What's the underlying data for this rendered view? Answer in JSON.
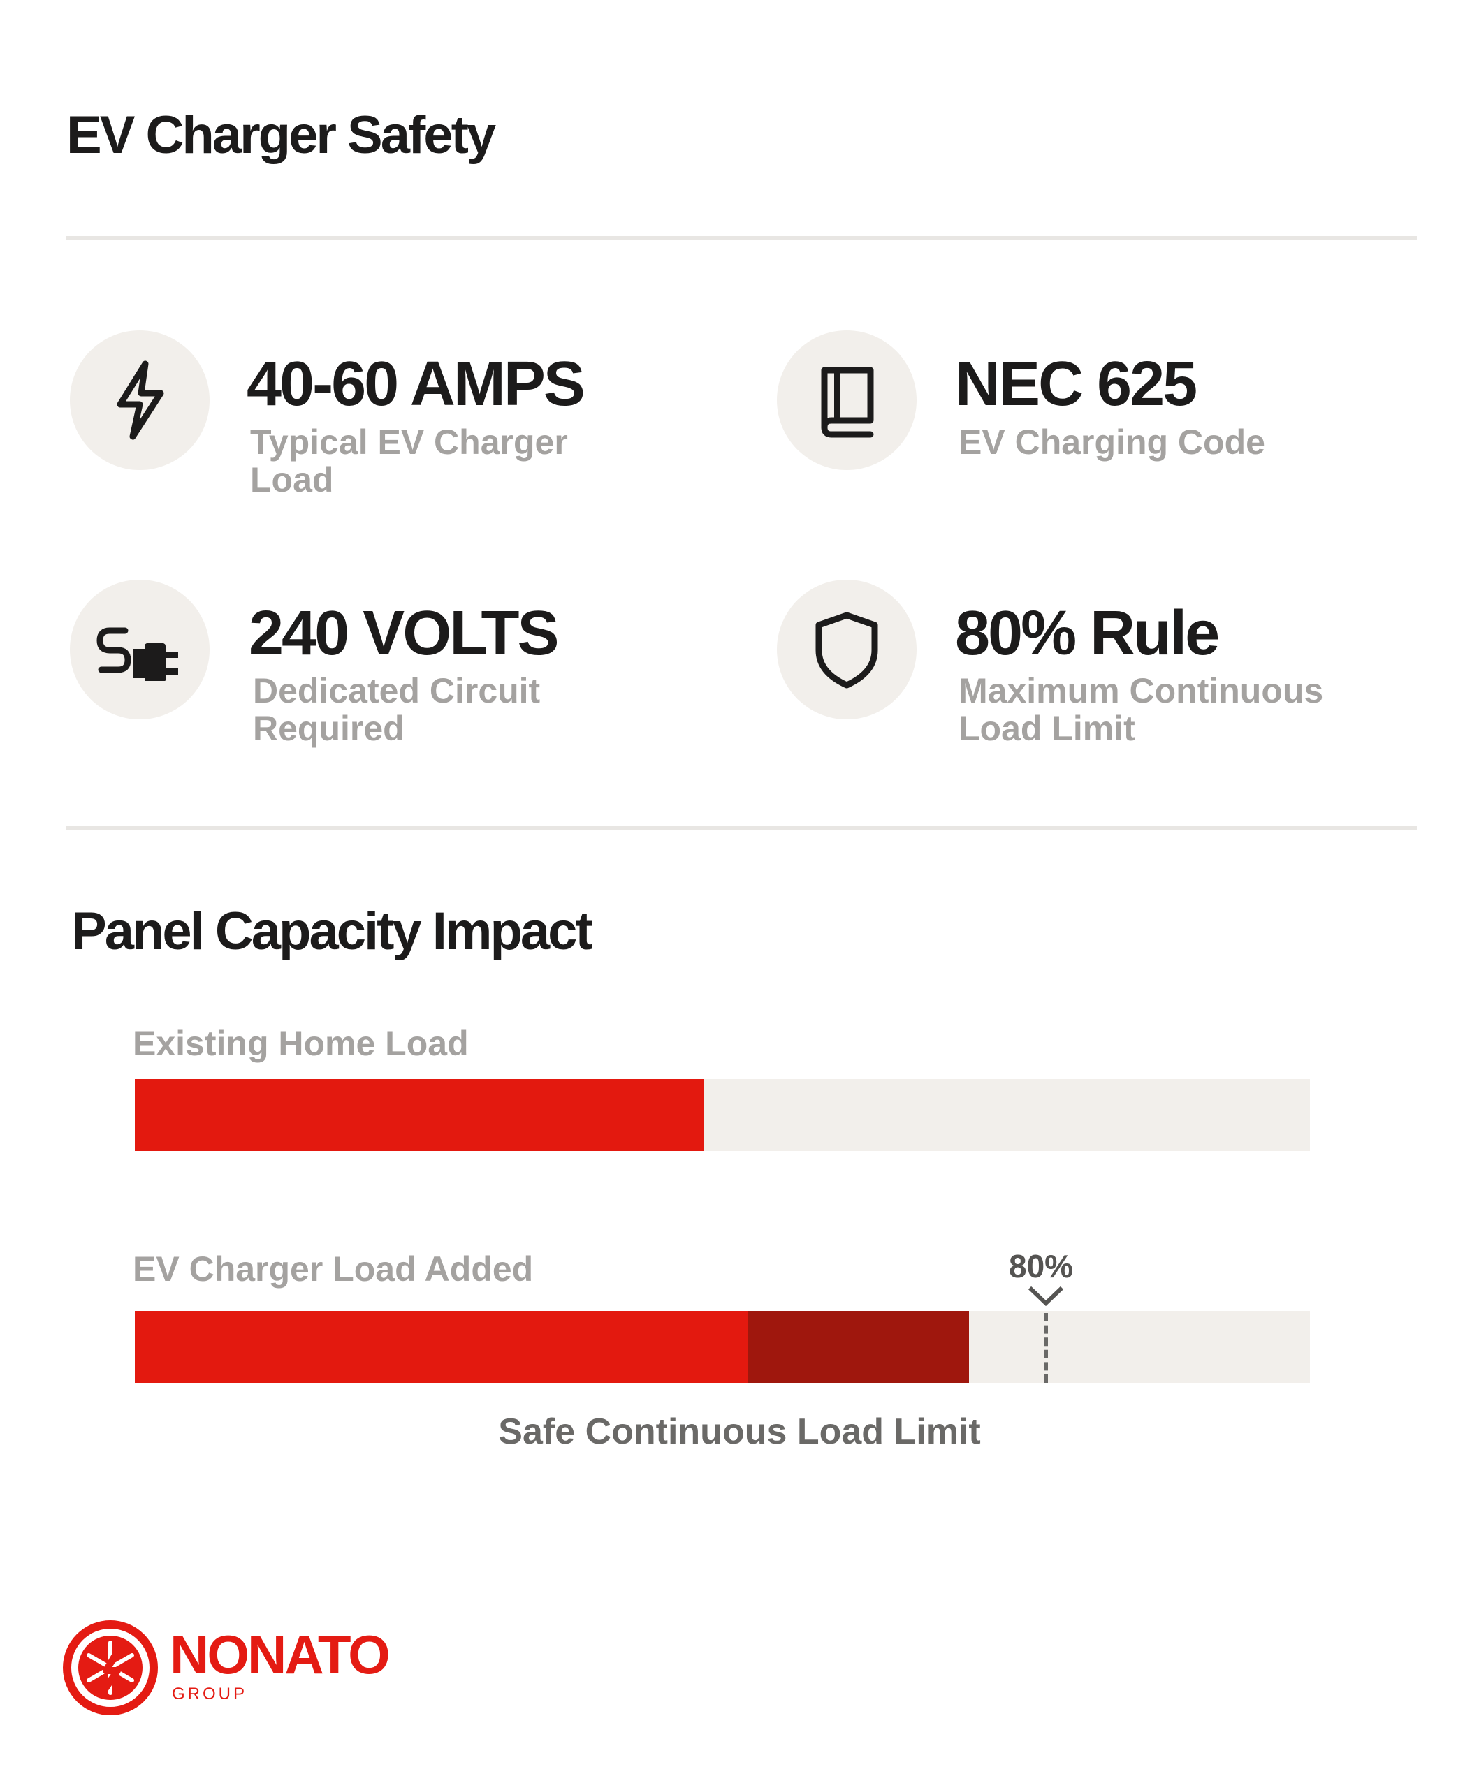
{
  "header": {
    "title": "EV Charger Safety"
  },
  "stats": [
    {
      "icon": "lightning-icon",
      "value": "40-60 AMPS",
      "label": "Typical EV Charger Load"
    },
    {
      "icon": "book-icon",
      "value": "NEC 625",
      "label": "EV Charging Code"
    },
    {
      "icon": "plug-icon",
      "value": "240 VOLTS",
      "label": "Dedicated Circuit Required"
    },
    {
      "icon": "shield-icon",
      "value": "80% Rule",
      "label": "Maximum Continuous Load Limit"
    }
  ],
  "capacity": {
    "title": "Panel Capacity Impact",
    "bars": [
      {
        "label": "Existing Home Load",
        "segments": [
          {
            "fraction": 0.484,
            "color": "#e3190f"
          }
        ]
      },
      {
        "label": "EV Charger Load Added",
        "segments": [
          {
            "fraction": 0.522,
            "color": "#e3190f"
          },
          {
            "fraction": 0.188,
            "color": "#9f170d"
          }
        ]
      }
    ],
    "marker": {
      "label": "80%",
      "fraction": 0.8
    },
    "caption": "Safe Continuous Load Limit"
  },
  "colors": {
    "accent": "#e3190f",
    "accent_dark": "#9f170d",
    "track": "#f2efeb",
    "muted_text": "#a4a2a0"
  },
  "brand": {
    "name": "NONATO",
    "sub": "GROUP"
  }
}
